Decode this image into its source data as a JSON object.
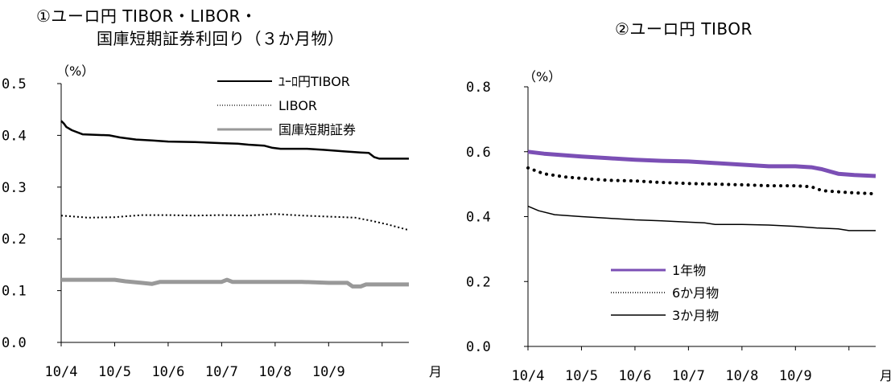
{
  "chart_data": [
    {
      "type": "line",
      "title_line1": "①ユーロ円 TIBOR・LIBOR・",
      "title_line2": "国庫短期証券利回り（３か月物）",
      "unit_label": "（%）",
      "x_suffix": "月",
      "categories": [
        "10/4",
        "10/5",
        "10/6",
        "10/7",
        "10/8",
        "10/9"
      ],
      "ylim": [
        0.0,
        0.5
      ],
      "yticks": [
        "0.0",
        "0.1",
        "0.2",
        "0.3",
        "0.4",
        "0.5"
      ],
      "legend_position": "top-right",
      "series": [
        {
          "name": "ﾕｰﾛ円TIBOR",
          "color": "#000000",
          "style": "solid",
          "width": 2.5,
          "points": [
            [
              0.0,
              0.428
            ],
            [
              0.05,
              0.423
            ],
            [
              0.1,
              0.416
            ],
            [
              0.2,
              0.41
            ],
            [
              0.4,
              0.402
            ],
            [
              0.9,
              0.4
            ],
            [
              1.1,
              0.396
            ],
            [
              1.4,
              0.392
            ],
            [
              1.7,
              0.39
            ],
            [
              2.0,
              0.388
            ],
            [
              2.5,
              0.387
            ],
            [
              3.0,
              0.385
            ],
            [
              3.3,
              0.384
            ],
            [
              3.5,
              0.382
            ],
            [
              3.8,
              0.38
            ],
            [
              3.95,
              0.376
            ],
            [
              4.1,
              0.374
            ],
            [
              4.6,
              0.374
            ],
            [
              4.9,
              0.372
            ],
            [
              5.3,
              0.369
            ],
            [
              5.6,
              0.367
            ],
            [
              5.75,
              0.366
            ],
            [
              5.85,
              0.358
            ],
            [
              5.95,
              0.355
            ],
            [
              6.3,
              0.355
            ],
            [
              6.5,
              0.355
            ]
          ]
        },
        {
          "name": "LIBOR",
          "color": "#000000",
          "style": "dotted",
          "width": 2,
          "points": [
            [
              0.0,
              0.245
            ],
            [
              0.5,
              0.241
            ],
            [
              1.0,
              0.242
            ],
            [
              1.5,
              0.246
            ],
            [
              2.0,
              0.246
            ],
            [
              2.5,
              0.245
            ],
            [
              3.0,
              0.246
            ],
            [
              3.5,
              0.245
            ],
            [
              4.0,
              0.248
            ],
            [
              4.5,
              0.245
            ],
            [
              5.0,
              0.243
            ],
            [
              5.5,
              0.241
            ],
            [
              5.8,
              0.235
            ],
            [
              6.1,
              0.228
            ],
            [
              6.5,
              0.217
            ]
          ]
        },
        {
          "name": "国庫短期証券",
          "color": "#999999",
          "style": "solid",
          "width": 5,
          "points": [
            [
              0.0,
              0.121
            ],
            [
              1.0,
              0.121
            ],
            [
              1.2,
              0.118
            ],
            [
              1.5,
              0.115
            ],
            [
              1.7,
              0.113
            ],
            [
              1.85,
              0.117
            ],
            [
              2.5,
              0.117
            ],
            [
              3.0,
              0.117
            ],
            [
              3.1,
              0.121
            ],
            [
              3.2,
              0.117
            ],
            [
              4.0,
              0.117
            ],
            [
              4.5,
              0.117
            ],
            [
              5.0,
              0.115
            ],
            [
              5.35,
              0.115
            ],
            [
              5.45,
              0.108
            ],
            [
              5.6,
              0.108
            ],
            [
              5.7,
              0.112
            ],
            [
              6.0,
              0.112
            ],
            [
              6.5,
              0.112
            ]
          ]
        }
      ]
    },
    {
      "type": "line",
      "title": "②ユーロ円 TIBOR",
      "unit_label": "（%）",
      "x_suffix": "月",
      "categories": [
        "10/4",
        "10/5",
        "10/6",
        "10/7",
        "10/8",
        "10/9"
      ],
      "ylim": [
        0.0,
        0.8
      ],
      "yticks": [
        "0.0",
        "0.2",
        "0.4",
        "0.6",
        "0.8"
      ],
      "legend_position": "bottom-left",
      "series": [
        {
          "name": "1年物",
          "color": "#7b4fb5",
          "style": "solid",
          "width": 5,
          "points": [
            [
              0.0,
              0.6
            ],
            [
              0.3,
              0.594
            ],
            [
              0.6,
              0.59
            ],
            [
              1.0,
              0.585
            ],
            [
              1.5,
              0.58
            ],
            [
              2.0,
              0.575
            ],
            [
              2.5,
              0.572
            ],
            [
              3.0,
              0.57
            ],
            [
              3.5,
              0.565
            ],
            [
              4.0,
              0.56
            ],
            [
              4.5,
              0.555
            ],
            [
              5.0,
              0.555
            ],
            [
              5.3,
              0.552
            ],
            [
              5.5,
              0.546
            ],
            [
              5.8,
              0.532
            ],
            [
              6.1,
              0.528
            ],
            [
              6.5,
              0.525
            ]
          ]
        },
        {
          "name": "6か月物",
          "color": "#000000",
          "style": "dotted-bold",
          "width": 4,
          "points": [
            [
              0.0,
              0.55
            ],
            [
              0.3,
              0.532
            ],
            [
              0.7,
              0.522
            ],
            [
              1.0,
              0.518
            ],
            [
              1.5,
              0.512
            ],
            [
              2.0,
              0.51
            ],
            [
              2.5,
              0.505
            ],
            [
              3.0,
              0.502
            ],
            [
              3.5,
              0.5
            ],
            [
              4.0,
              0.498
            ],
            [
              4.5,
              0.495
            ],
            [
              5.0,
              0.495
            ],
            [
              5.3,
              0.492
            ],
            [
              5.5,
              0.48
            ],
            [
              6.0,
              0.474
            ],
            [
              6.5,
              0.47
            ]
          ]
        },
        {
          "name": "3か月物",
          "color": "#000000",
          "style": "solid",
          "width": 1.5,
          "points": [
            [
              0.0,
              0.432
            ],
            [
              0.2,
              0.418
            ],
            [
              0.5,
              0.406
            ],
            [
              1.0,
              0.4
            ],
            [
              1.5,
              0.395
            ],
            [
              2.0,
              0.39
            ],
            [
              2.5,
              0.387
            ],
            [
              3.0,
              0.383
            ],
            [
              3.3,
              0.381
            ],
            [
              3.5,
              0.376
            ],
            [
              4.0,
              0.376
            ],
            [
              4.5,
              0.374
            ],
            [
              5.0,
              0.37
            ],
            [
              5.4,
              0.365
            ],
            [
              5.8,
              0.362
            ],
            [
              6.0,
              0.357
            ],
            [
              6.5,
              0.357
            ]
          ]
        }
      ]
    }
  ]
}
